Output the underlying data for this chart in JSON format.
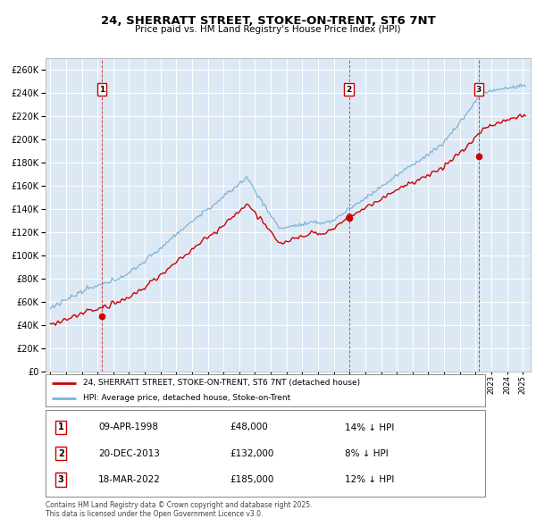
{
  "title": "24, SHERRATT STREET, STOKE-ON-TRENT, ST6 7NT",
  "subtitle": "Price paid vs. HM Land Registry's House Price Index (HPI)",
  "ylim": [
    0,
    270000
  ],
  "yticks": [
    0,
    20000,
    40000,
    60000,
    80000,
    100000,
    120000,
    140000,
    160000,
    180000,
    200000,
    220000,
    240000,
    260000
  ],
  "xlim_start": 1994.7,
  "xlim_end": 2025.5,
  "background_color": "#dce9f5",
  "grid_color": "#ffffff",
  "hpi_color": "#7fb3d3",
  "price_color": "#cc0000",
  "sale1_date": 1998.27,
  "sale1_price": 48000,
  "sale2_date": 2013.97,
  "sale2_price": 132000,
  "sale3_date": 2022.21,
  "sale3_price": 185000,
  "legend_label_price": "24, SHERRATT STREET, STOKE-ON-TRENT, ST6 7NT (detached house)",
  "legend_label_hpi": "HPI: Average price, detached house, Stoke-on-Trent",
  "footer_text": "Contains HM Land Registry data © Crown copyright and database right 2025.\nThis data is licensed under the Open Government Licence v3.0.",
  "table_rows": [
    [
      "1",
      "09-APR-1998",
      "£48,000",
      "14% ↓ HPI"
    ],
    [
      "2",
      "20-DEC-2013",
      "£132,000",
      "8% ↓ HPI"
    ],
    [
      "3",
      "18-MAR-2022",
      "£185,000",
      "12% ↓ HPI"
    ]
  ]
}
